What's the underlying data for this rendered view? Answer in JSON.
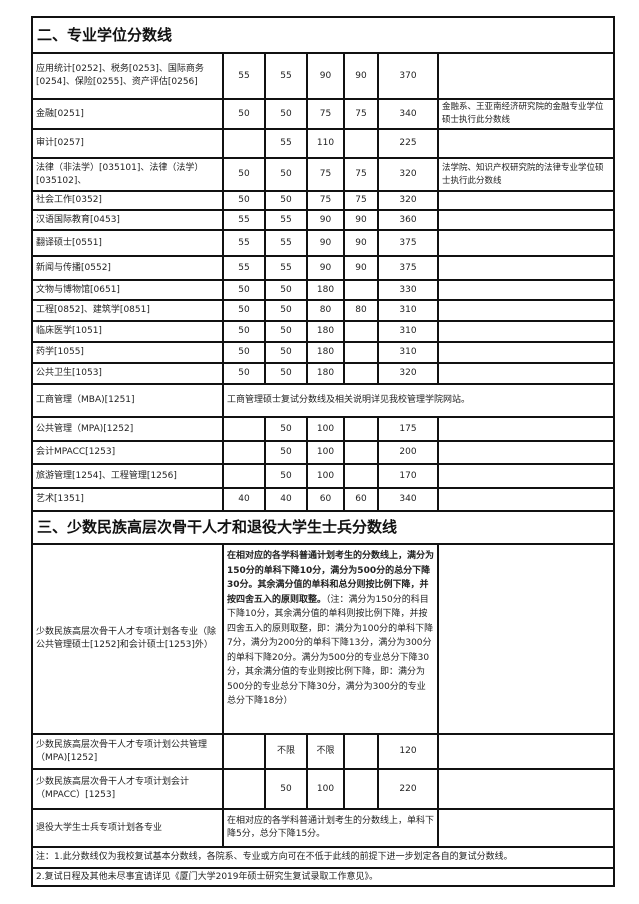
{
  "section2_title": "二、专业学位分数线",
  "section2_rows": [
    {
      "name": "应用统计[0252]、税务[0253]、国际商务[0254]、保险[0255]、资产评估[0256]",
      "v": [
        "55",
        "55",
        "90",
        "90",
        "370"
      ],
      "note": ""
    },
    {
      "name": "金融[0251]",
      "v": [
        "50",
        "50",
        "75",
        "75",
        "340"
      ],
      "note": "金融系、王亚南经济研究院的金融专业学位硕士执行此分数线"
    },
    {
      "name": "审计[0257]",
      "v": [
        "",
        "55",
        "110",
        "",
        "225"
      ],
      "note": ""
    },
    {
      "name": "法律（非法学）[035101]、法律（法学）[035102]、",
      "v": [
        "50",
        "50",
        "75",
        "75",
        "320"
      ],
      "note": "法学院、知识产权研究院的法律专业学位硕士执行此分数线"
    },
    {
      "name": "社会工作[0352]",
      "v": [
        "50",
        "50",
        "75",
        "75",
        "320"
      ],
      "note": ""
    },
    {
      "name": "汉语国际教育[0453]",
      "v": [
        "55",
        "55",
        "90",
        "90",
        "360"
      ],
      "note": ""
    },
    {
      "name": "翻译硕士[0551]",
      "v": [
        "55",
        "55",
        "90",
        "90",
        "375"
      ],
      "note": ""
    },
    {
      "name": "新闻与传播[0552]",
      "v": [
        "55",
        "55",
        "90",
        "90",
        "375"
      ],
      "note": ""
    },
    {
      "name": "文物与博物馆[0651]",
      "v": [
        "50",
        "50",
        "180",
        "",
        "330"
      ],
      "note": ""
    },
    {
      "name": "工程[0852]、建筑学[0851]",
      "v": [
        "50",
        "50",
        "80",
        "80",
        "310"
      ],
      "note": ""
    },
    {
      "name": "临床医学[1051]",
      "v": [
        "50",
        "50",
        "180",
        "",
        "310"
      ],
      "note": ""
    },
    {
      "name": "药学[1055]",
      "v": [
        "50",
        "50",
        "180",
        "",
        "310"
      ],
      "note": ""
    },
    {
      "name": "公共卫生[1053]",
      "v": [
        "50",
        "50",
        "180",
        "",
        "320"
      ],
      "note": ""
    }
  ],
  "mba": {
    "name": "工商管理（MBA)[1251]",
    "text": "工商管理硕士复试分数线及相关说明详见我校管理学院网站。"
  },
  "section2_rows_b": [
    {
      "name": "公共管理（MPA)[1252]",
      "v": [
        "",
        "50",
        "100",
        "",
        "175"
      ],
      "note": ""
    },
    {
      "name": "会计MPACC[1253]",
      "v": [
        "",
        "50",
        "100",
        "",
        "200"
      ],
      "note": ""
    },
    {
      "name": "旅游管理[1254]、工程管理[1256]",
      "v": [
        "",
        "50",
        "100",
        "",
        "170"
      ],
      "note": ""
    },
    {
      "name": "艺术[1351]",
      "v": [
        "40",
        "40",
        "60",
        "60",
        "340"
      ],
      "note": ""
    }
  ],
  "section3_title": "三、少数民族高层次骨干人才和退役大学生士兵分数线",
  "minority": {
    "name": "少数民族高层次骨干人才专项计划各专业（除公共管理硕士[1252]和会计硕士[1253]外）",
    "text_bold": "在相对应的各学科普通计划考生的分数线上，满分为150分的单科下降10分，满分为500分的总分下降30分。其余满分值的单科和总分则按比例下降，并按四舍五入的原则取整。",
    "text_normal": "（注：满分为150分的科目下降10分，其余满分值的单科则按比例下降，并按四舍五入的原则取整，即：满分为100分的单科下降7分，满分为200分的单科下降13分，满分为300分的单科下降20分。满分为500分的专业总分下降30分，其余满分值的专业则按比例下降，即：满分为500分的专业总分下降30分，满分为300分的专业总分下降18分）"
  },
  "section3_rows": [
    {
      "name": "少数民族高层次骨干人才专项计划公共管理（MPA)[1252]",
      "v": [
        "",
        "不限",
        "不限",
        "",
        "120"
      ],
      "note": ""
    },
    {
      "name": "少数民族高层次骨干人才专项计划会计（MPACC）[1253]",
      "v": [
        "",
        "50",
        "100",
        "",
        "220"
      ],
      "note": ""
    }
  ],
  "veteran": {
    "name": "退役大学生士兵专项计划各专业",
    "text": "在相对应的各学科普通计划考生的分数线上，单科下降5分，总分下降15分。"
  },
  "notes": [
    "注：1.此分数线仅为我校复试基本分数线，各院系、专业或方向可在不低于此线的前提下进一步划定各自的复试分数线。",
    "2.复试日程及其他未尽事宜请详见《厦门大学2019年硕士研究生复试录取工作意见》。"
  ]
}
